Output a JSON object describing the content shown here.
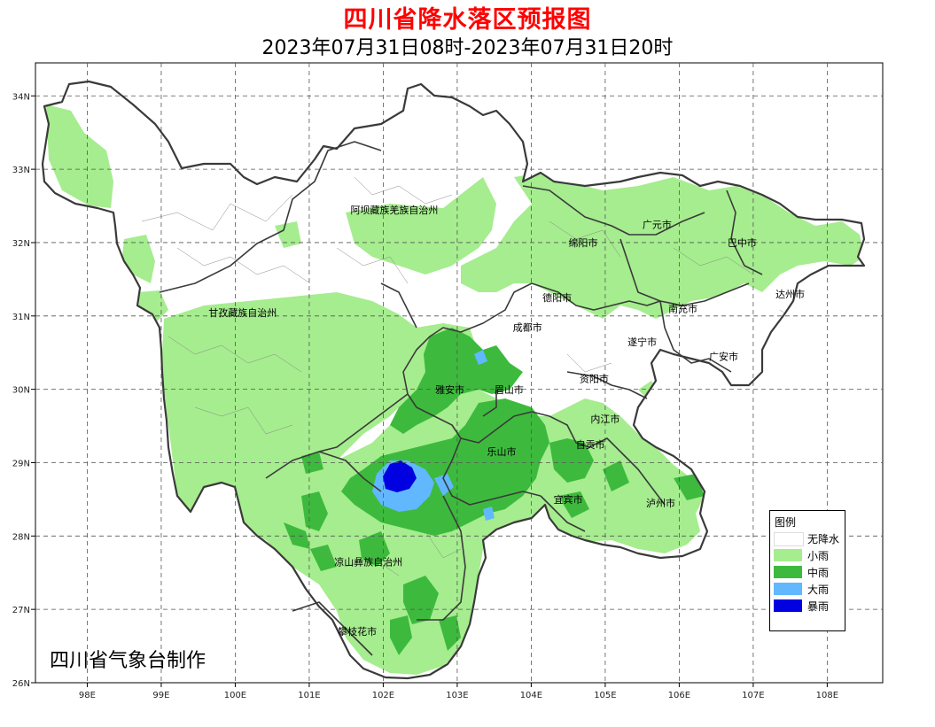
{
  "title": "四川省降水落区预报图",
  "subtitle": "2023年07月31日08时-2023年07月31日20时",
  "credit": "四川省气象台制作",
  "map": {
    "lon_ticks": [
      "98E",
      "99E",
      "100E",
      "101E",
      "102E",
      "103E",
      "104E",
      "105E",
      "106E",
      "107E",
      "108E"
    ],
    "lat_ticks": [
      "34N",
      "33N",
      "32N",
      "31N",
      "30N",
      "29N",
      "28N",
      "27N",
      "26N"
    ],
    "lon_range": [
      97.3,
      108.75
    ],
    "lat_range": [
      26.0,
      34.45
    ],
    "grid": "dashed",
    "cities": [
      {
        "name": "阿坝藏族羌族自治州",
        "lon": 102.15,
        "lat": 32.4
      },
      {
        "name": "甘孜藏族自治州",
        "lon": 100.1,
        "lat": 31.0
      },
      {
        "name": "凉山彝族自治州",
        "lon": 101.8,
        "lat": 27.6
      },
      {
        "name": "攀枝花市",
        "lon": 101.65,
        "lat": 26.65
      },
      {
        "name": "绵阳市",
        "lon": 104.7,
        "lat": 31.95
      },
      {
        "name": "广元市",
        "lon": 105.7,
        "lat": 32.2
      },
      {
        "name": "巴中市",
        "lon": 106.85,
        "lat": 31.95
      },
      {
        "name": "达州市",
        "lon": 107.5,
        "lat": 31.25
      },
      {
        "name": "南充市",
        "lon": 106.05,
        "lat": 31.05
      },
      {
        "name": "德阳市",
        "lon": 104.35,
        "lat": 31.2
      },
      {
        "name": "成都市",
        "lon": 103.95,
        "lat": 30.8
      },
      {
        "name": "遂宁市",
        "lon": 105.5,
        "lat": 30.6
      },
      {
        "name": "广安市",
        "lon": 106.6,
        "lat": 30.4
      },
      {
        "name": "资阳市",
        "lon": 104.85,
        "lat": 30.1
      },
      {
        "name": "雅安市",
        "lon": 102.9,
        "lat": 29.95
      },
      {
        "name": "眉山市",
        "lon": 103.7,
        "lat": 29.95
      },
      {
        "name": "乐山市",
        "lon": 103.6,
        "lat": 29.1
      },
      {
        "name": "内江市",
        "lon": 105.0,
        "lat": 29.55
      },
      {
        "name": "自贡市",
        "lon": 104.8,
        "lat": 29.2
      },
      {
        "name": "宜宾市",
        "lon": 104.5,
        "lat": 28.45
      },
      {
        "name": "泸州市",
        "lon": 105.75,
        "lat": 28.4
      }
    ]
  },
  "legend": {
    "title": "图例",
    "items": [
      {
        "label": "无降水",
        "color": "#ffffff"
      },
      {
        "label": "小雨",
        "color": "#a5ed8e"
      },
      {
        "label": "中雨",
        "color": "#3dba3d"
      },
      {
        "label": "大雨",
        "color": "#61b8ff"
      },
      {
        "label": "暴雨",
        "color": "#0000e1"
      }
    ]
  },
  "colors": {
    "title": "#ff0000",
    "boundary": "#3a3a3a",
    "county_boundary": "#888888",
    "grid": "#555555"
  }
}
